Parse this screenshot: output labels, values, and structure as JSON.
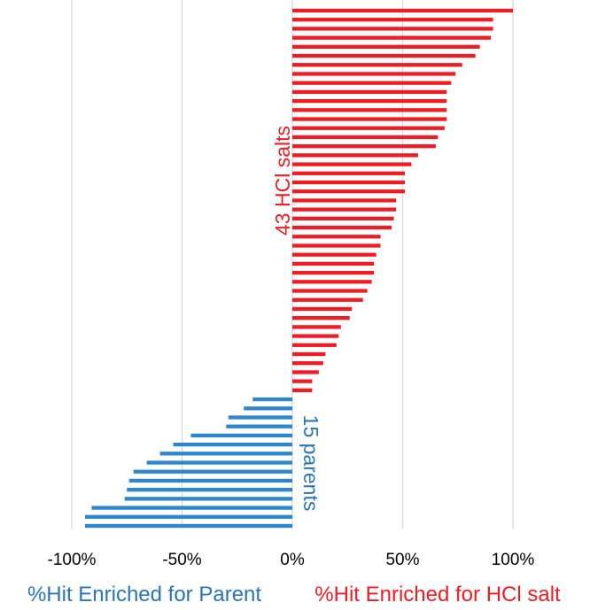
{
  "colors": {
    "hcl": "#ee1c24",
    "parent": "#2e86cf",
    "parent_text": "#2b75b5",
    "grid": "#d9d9d9"
  },
  "chart_data": {
    "type": "bar",
    "orientation": "horizontal",
    "xlim": [
      -100,
      100
    ],
    "x_ticks": [
      -100,
      -50,
      0,
      50,
      100
    ],
    "x_tick_labels": [
      "-100%",
      "-50%",
      "0%",
      "50%",
      "100%"
    ],
    "grid": true,
    "series": [
      {
        "name": "43 HCl salts",
        "color": "#ee1c24",
        "values": [
          100,
          91,
          91,
          90,
          85,
          83,
          77,
          74,
          72,
          70,
          70,
          70,
          70,
          69,
          66,
          65,
          57,
          54,
          51,
          51,
          51,
          47,
          47,
          46,
          45,
          40,
          40,
          38,
          37,
          37,
          36,
          34,
          32,
          27,
          26,
          22,
          21,
          20,
          15,
          14,
          12,
          9,
          9
        ]
      },
      {
        "name": "15 parents",
        "color": "#2e86cf",
        "values": [
          -18,
          -22,
          -29,
          -30,
          -46,
          -54,
          -60,
          -66,
          -72,
          -74,
          -75,
          -76,
          -91,
          -94,
          -94
        ]
      }
    ],
    "xlabel_left": "%Hit Enriched for Parent",
    "xlabel_right": "%Hit Enriched for HCl salt"
  }
}
